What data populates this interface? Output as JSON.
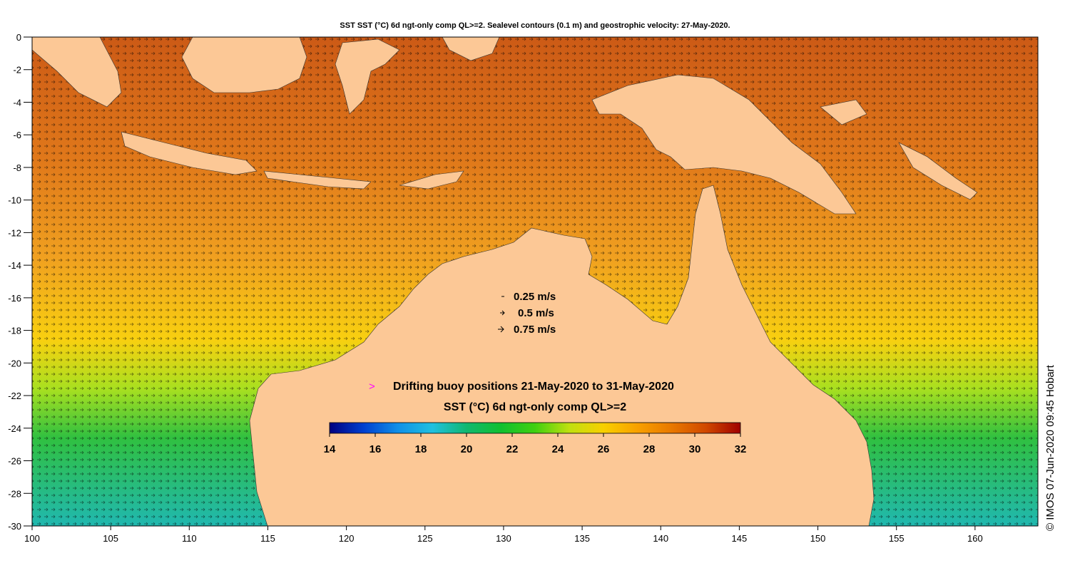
{
  "title": "SST SST (°C) 6d ngt-only comp QL>=2. Sealevel contours (0.1 m) and geostrophic velocity: 27-May-2020.",
  "credit": "© IMOS 07-Jun-2020 09:45 Hobart",
  "axes": {
    "lon_ticks": [
      100,
      105,
      110,
      115,
      120,
      125,
      130,
      135,
      140,
      145,
      150,
      155,
      160
    ],
    "lat_ticks": [
      0,
      -2,
      -4,
      -6,
      -8,
      -10,
      -12,
      -14,
      -16,
      -18,
      -20,
      -22,
      -24,
      -26,
      -28,
      -30
    ],
    "lon_range": [
      100,
      164
    ],
    "lat_range": [
      -30,
      0
    ]
  },
  "velocity_legend": [
    "0.25 m/s",
    "0.5 m/s",
    "0.75 m/s"
  ],
  "buoy_legend": {
    "marker": ">",
    "marker_color": "#ff00ff",
    "label": "Drifting buoy positions 21-May-2020 to 31-May-2020"
  },
  "colorbar": {
    "title": "SST (°C) 6d ngt-only comp QL>=2",
    "ticks": [
      "14",
      "16",
      "18",
      "20",
      "22",
      "24",
      "26",
      "28",
      "30",
      "32"
    ],
    "range": [
      14,
      32
    ],
    "colors": [
      "#000080",
      "#0040d0",
      "#1090e8",
      "#20c0e0",
      "#10b870",
      "#10c030",
      "#40d010",
      "#c0e010",
      "#f8d000",
      "#f8a000",
      "#e87800",
      "#d04800",
      "#a00000"
    ]
  },
  "colors": {
    "land": "#fcc896",
    "sea_warm": "#d8601a",
    "sea_mid": "#f0a020",
    "sea_cool": "#30c050"
  }
}
